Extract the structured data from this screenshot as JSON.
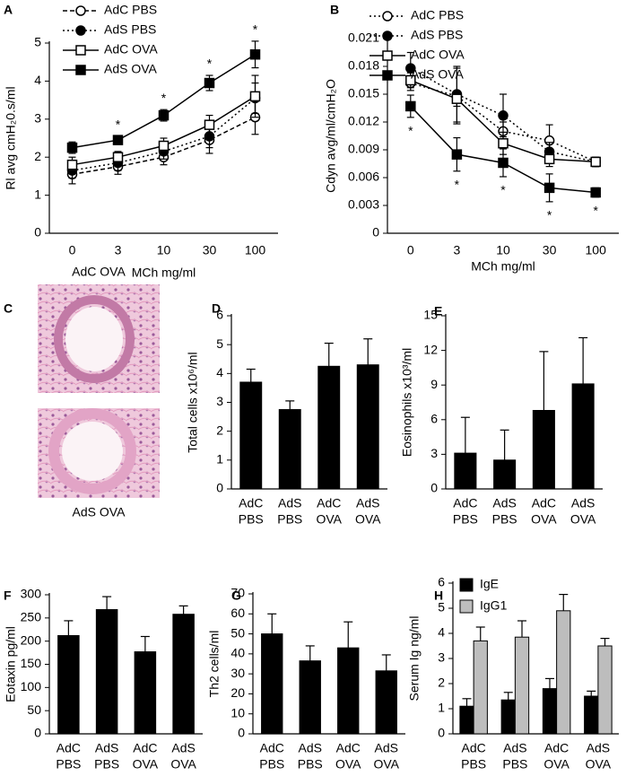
{
  "chart_data": [
    {
      "type": "line",
      "panel": "A",
      "ylabel": "Rl avg cmH₂0.s/ml",
      "xlabel": "MCh mg/ml",
      "categories": [
        "0",
        "3",
        "10",
        "30",
        "100"
      ],
      "ylim": [
        0,
        5
      ],
      "yticks": [
        0,
        1,
        2,
        3,
        4,
        5
      ],
      "series": [
        {
          "name": "AdC PBS",
          "color": "#000000",
          "marker": "circle",
          "filled": false,
          "dash": "dashed",
          "values": [
            1.55,
            1.75,
            2.0,
            2.45,
            3.05
          ],
          "errors": [
            0.25,
            0.2,
            0.2,
            0.35,
            0.45
          ]
        },
        {
          "name": "AdS PBS",
          "color": "#000000",
          "marker": "circle",
          "filled": true,
          "dash": "dotted",
          "values": [
            1.65,
            1.85,
            2.15,
            2.55,
            3.55
          ],
          "errors": [
            0.2,
            0.2,
            0.2,
            0.3,
            0.4
          ]
        },
        {
          "name": "AdC OVA",
          "color": "#000000",
          "marker": "square",
          "filled": false,
          "dash": "solid",
          "values": [
            1.8,
            2.0,
            2.3,
            2.85,
            3.6
          ],
          "errors": [
            0.2,
            0.15,
            0.2,
            0.25,
            0.55
          ]
        },
        {
          "name": "AdS OVA",
          "color": "#000000",
          "marker": "square",
          "filled": true,
          "dash": "solid",
          "values": [
            2.25,
            2.45,
            3.1,
            3.95,
            4.7
          ],
          "errors": [
            0.15,
            0.1,
            0.15,
            0.2,
            0.35
          ]
        }
      ],
      "annotations": [
        null,
        "*",
        "*",
        "*",
        "*"
      ],
      "annotation_position": "above"
    },
    {
      "type": "line",
      "panel": "B",
      "ylabel": "Cdyn avg/ml/cmH₂O",
      "xlabel": "MCh mg/ml",
      "categories": [
        "0",
        "3",
        "10",
        "30",
        "100"
      ],
      "ylim": [
        0,
        0.021
      ],
      "yticks": [
        0,
        0.003,
        0.006,
        0.009,
        0.012,
        0.015,
        0.018,
        0.021
      ],
      "series": [
        {
          "name": "AdC PBS",
          "color": "#000000",
          "marker": "circle",
          "filled": false,
          "dash": "dotted",
          "values": [
            0.0162,
            0.0148,
            0.011,
            0.01,
            0.0077
          ],
          "errors": [
            0.0008,
            0.003,
            0.001,
            0.0017,
            0.0005
          ]
        },
        {
          "name": "AdS PBS",
          "color": "#000000",
          "marker": "circle",
          "filled": true,
          "dash": "dotted",
          "values": [
            0.0178,
            0.015,
            0.0127,
            0.0088,
            0.0077
          ],
          "errors": [
            0.0017,
            0.003,
            0.0023,
            0.001,
            0.0005
          ]
        },
        {
          "name": "AdC OVA",
          "color": "#000000",
          "marker": "square",
          "filled": false,
          "dash": "solid",
          "values": [
            0.0165,
            0.0145,
            0.0097,
            0.008,
            0.0077
          ],
          "errors": [
            0.0008,
            0.0008,
            0.0012,
            0.0008,
            0.0005
          ]
        },
        {
          "name": "AdS OVA",
          "color": "#000000",
          "marker": "square",
          "filled": true,
          "dash": "solid",
          "values": [
            0.0137,
            0.0085,
            0.0076,
            0.0049,
            0.0044
          ],
          "errors": [
            0.0012,
            0.0018,
            0.0015,
            0.0015,
            0.0005
          ]
        }
      ],
      "annotations": [
        "*",
        "*",
        "*",
        "*",
        "*"
      ],
      "annotation_position": "below"
    },
    {
      "type": "bar",
      "panel": "D",
      "ylabel": "Total cells x10⁶/ml",
      "categories": [
        [
          "AdC",
          "PBS"
        ],
        [
          "AdS",
          "PBS"
        ],
        [
          "AdC",
          "OVA"
        ],
        [
          "AdS",
          "OVA"
        ]
      ],
      "ylim": [
        0,
        6
      ],
      "yticks": [
        0,
        1,
        2,
        3,
        4,
        5,
        6
      ],
      "series": [
        {
          "color": "#000000",
          "values": [
            3.7,
            2.75,
            4.25,
            4.3
          ],
          "errors": [
            0.45,
            0.3,
            0.8,
            0.9
          ]
        }
      ]
    },
    {
      "type": "bar",
      "panel": "E",
      "ylabel": "Eosinophils x10³/ml",
      "categories": [
        [
          "AdC",
          "PBS"
        ],
        [
          "AdS",
          "PBS"
        ],
        [
          "AdC",
          "OVA"
        ],
        [
          "AdS",
          "OVA"
        ]
      ],
      "ylim": [
        0,
        15
      ],
      "yticks": [
        0,
        3,
        6,
        9,
        12,
        15
      ],
      "series": [
        {
          "color": "#000000",
          "values": [
            3.1,
            2.5,
            6.8,
            9.1
          ],
          "errors": [
            3.1,
            2.6,
            5.1,
            4.0
          ]
        }
      ]
    },
    {
      "type": "bar",
      "panel": "F",
      "ylabel": "Eotaxin pg/ml",
      "categories": [
        [
          "AdC",
          "PBS"
        ],
        [
          "AdS",
          "PBS"
        ],
        [
          "AdC",
          "OVA"
        ],
        [
          "AdS",
          "OVA"
        ]
      ],
      "ylim": [
        0,
        300
      ],
      "yticks": [
        0,
        50,
        100,
        150,
        200,
        250,
        300
      ],
      "series": [
        {
          "color": "#000000",
          "values": [
            212,
            268,
            177,
            258
          ],
          "errors": [
            32,
            28,
            33,
            18
          ]
        }
      ]
    },
    {
      "type": "bar",
      "panel": "G",
      "ylabel": "Th2 cells/ml",
      "categories": [
        [
          "AdC",
          "PBS"
        ],
        [
          "AdS",
          "PBS"
        ],
        [
          "AdC",
          "OVA"
        ],
        [
          "AdS",
          "OVA"
        ]
      ],
      "ylim": [
        0,
        70
      ],
      "yticks": [
        0,
        10,
        20,
        30,
        40,
        50,
        60,
        70
      ],
      "series": [
        {
          "color": "#000000",
          "values": [
            50,
            36.5,
            43,
            31.5
          ],
          "errors": [
            10,
            7.5,
            13,
            8
          ]
        }
      ]
    },
    {
      "type": "bar",
      "panel": "H",
      "ylabel": "Serum Ig ng/ml",
      "categories": [
        [
          "AdC",
          "PBS"
        ],
        [
          "AdS",
          "PBS"
        ],
        [
          "AdC",
          "OVA"
        ],
        [
          "AdS",
          "OVA"
        ]
      ],
      "ylim": [
        0,
        6
      ],
      "yticks": [
        0,
        1,
        2,
        3,
        4,
        5,
        6
      ],
      "legend": "top-left",
      "series": [
        {
          "name": "IgE",
          "color": "#000000",
          "values": [
            1.1,
            1.35,
            1.8,
            1.5
          ],
          "errors": [
            0.3,
            0.3,
            0.4,
            0.2
          ]
        },
        {
          "name": "IgG1",
          "color": "#bdbdbd",
          "values": [
            3.7,
            3.85,
            4.9,
            3.5
          ],
          "errors": [
            0.55,
            0.65,
            0.65,
            0.3
          ]
        }
      ]
    }
  ],
  "images": {
    "panel": "C",
    "labels": [
      "AdC OVA",
      "AdS OVA"
    ]
  }
}
